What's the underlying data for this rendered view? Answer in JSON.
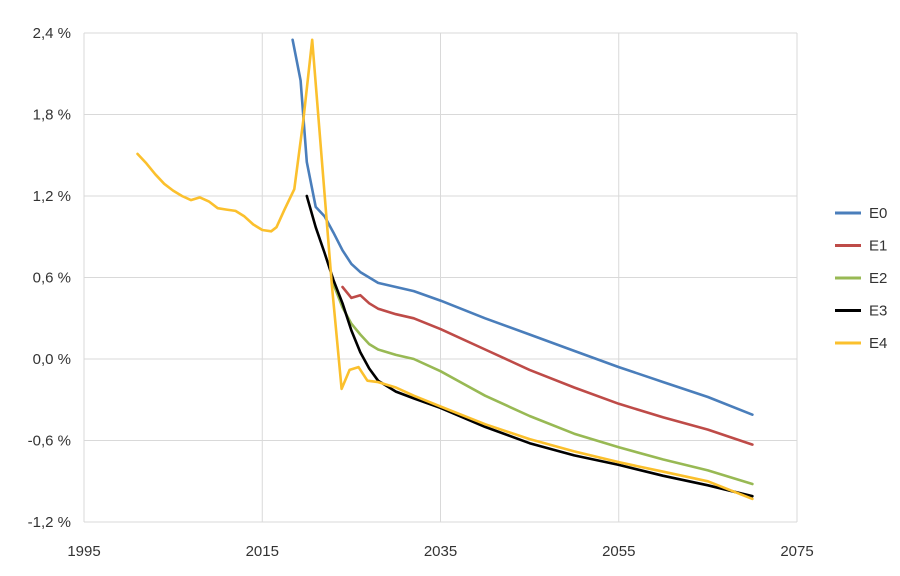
{
  "chart_data": {
    "type": "line",
    "title": "",
    "xlabel": "",
    "ylabel": "",
    "xlim": [
      1995,
      2075
    ],
    "ylim": [
      -1.2,
      2.4
    ],
    "x_ticks": [
      1995,
      2015,
      2035,
      2055,
      2075
    ],
    "x_tick_labels": [
      "1995",
      "2015",
      "2035",
      "2055",
      "2075"
    ],
    "y_ticks": [
      2.4,
      1.8,
      1.2,
      0.6,
      0.0,
      -0.6,
      -1.2
    ],
    "y_tick_labels": [
      "2,4 %",
      "1,8 %",
      "1,2 %",
      "0,6 %",
      "0,0 %",
      "-0,6 %",
      "-1,2 %"
    ],
    "grid": true,
    "legend_position": "right",
    "series": [
      {
        "name": "E0",
        "color": "#4a7ebb",
        "points": [
          [
            2018.4,
            2.35
          ],
          [
            2019.3,
            2.05
          ],
          [
            2020,
            1.45
          ],
          [
            2021,
            1.12
          ],
          [
            2022,
            1.05
          ],
          [
            2023,
            0.93
          ],
          [
            2024,
            0.8
          ],
          [
            2025,
            0.7
          ],
          [
            2026,
            0.64
          ],
          [
            2027,
            0.6
          ],
          [
            2028,
            0.56
          ],
          [
            2030,
            0.53
          ],
          [
            2032,
            0.5
          ],
          [
            2035,
            0.43
          ],
          [
            2040,
            0.3
          ],
          [
            2045,
            0.18
          ],
          [
            2050,
            0.06
          ],
          [
            2055,
            -0.06
          ],
          [
            2060,
            -0.17
          ],
          [
            2065,
            -0.28
          ],
          [
            2070,
            -0.41
          ]
        ]
      },
      {
        "name": "E1",
        "color": "#be4b48",
        "points": [
          [
            2024,
            0.53
          ],
          [
            2025,
            0.45
          ],
          [
            2026,
            0.47
          ],
          [
            2027,
            0.41
          ],
          [
            2028,
            0.37
          ],
          [
            2030,
            0.33
          ],
          [
            2032,
            0.3
          ],
          [
            2035,
            0.22
          ],
          [
            2040,
            0.07
          ],
          [
            2045,
            -0.08
          ],
          [
            2050,
            -0.21
          ],
          [
            2055,
            -0.33
          ],
          [
            2060,
            -0.43
          ],
          [
            2065,
            -0.52
          ],
          [
            2070,
            -0.63
          ]
        ]
      },
      {
        "name": "E2",
        "color": "#98b954",
        "points": [
          [
            2023,
            0.55
          ],
          [
            2024,
            0.38
          ],
          [
            2025,
            0.26
          ],
          [
            2026,
            0.18
          ],
          [
            2027,
            0.11
          ],
          [
            2028,
            0.07
          ],
          [
            2030,
            0.03
          ],
          [
            2032,
            0.0
          ],
          [
            2035,
            -0.09
          ],
          [
            2040,
            -0.27
          ],
          [
            2045,
            -0.42
          ],
          [
            2050,
            -0.55
          ],
          [
            2055,
            -0.65
          ],
          [
            2060,
            -0.74
          ],
          [
            2065,
            -0.82
          ],
          [
            2070,
            -0.92
          ]
        ]
      },
      {
        "name": "E3",
        "color": "#000000",
        "points": [
          [
            2020,
            1.2
          ],
          [
            2021,
            0.97
          ],
          [
            2022,
            0.78
          ],
          [
            2023,
            0.58
          ],
          [
            2024,
            0.41
          ],
          [
            2025,
            0.21
          ],
          [
            2026,
            0.05
          ],
          [
            2027,
            -0.07
          ],
          [
            2028,
            -0.16
          ],
          [
            2030,
            -0.24
          ],
          [
            2032,
            -0.29
          ],
          [
            2035,
            -0.36
          ],
          [
            2040,
            -0.5
          ],
          [
            2045,
            -0.62
          ],
          [
            2050,
            -0.71
          ],
          [
            2055,
            -0.78
          ],
          [
            2060,
            -0.86
          ],
          [
            2065,
            -0.93
          ],
          [
            2070,
            -1.01
          ]
        ]
      },
      {
        "name": "E4",
        "color": "#fbc02d",
        "points": [
          [
            2001,
            1.51
          ],
          [
            2002,
            1.44
          ],
          [
            2003,
            1.36
          ],
          [
            2004,
            1.29
          ],
          [
            2005,
            1.24
          ],
          [
            2006,
            1.2
          ],
          [
            2007,
            1.17
          ],
          [
            2008,
            1.19
          ],
          [
            2009,
            1.16
          ],
          [
            2010,
            1.11
          ],
          [
            2011,
            1.1
          ],
          [
            2012,
            1.09
          ],
          [
            2013,
            1.05
          ],
          [
            2014,
            0.99
          ],
          [
            2015,
            0.95
          ],
          [
            2016,
            0.94
          ],
          [
            2016.6,
            0.97
          ],
          [
            2017.5,
            1.1
          ],
          [
            2018.6,
            1.25
          ],
          [
            2019.6,
            1.75
          ],
          [
            2020.6,
            2.35
          ],
          [
            2022.8,
            0.55
          ],
          [
            2023.9,
            -0.22
          ],
          [
            2024.8,
            -0.08
          ],
          [
            2025.8,
            -0.06
          ],
          [
            2026.8,
            -0.16
          ],
          [
            2028,
            -0.17
          ],
          [
            2030,
            -0.21
          ],
          [
            2032,
            -0.27
          ],
          [
            2035,
            -0.35
          ],
          [
            2040,
            -0.48
          ],
          [
            2045,
            -0.59
          ],
          [
            2050,
            -0.68
          ],
          [
            2055,
            -0.76
          ],
          [
            2060,
            -0.83
          ],
          [
            2065,
            -0.9
          ],
          [
            2070,
            -1.03
          ]
        ]
      }
    ]
  }
}
